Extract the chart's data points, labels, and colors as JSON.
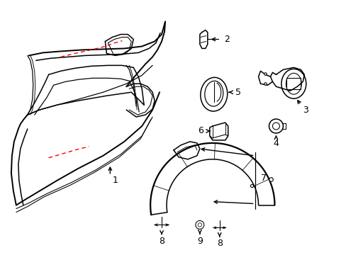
{
  "background_color": "#ffffff",
  "line_color": "#000000",
  "dashed_color": "#ff0000",
  "fig_width": 4.89,
  "fig_height": 3.6,
  "dpi": 100
}
